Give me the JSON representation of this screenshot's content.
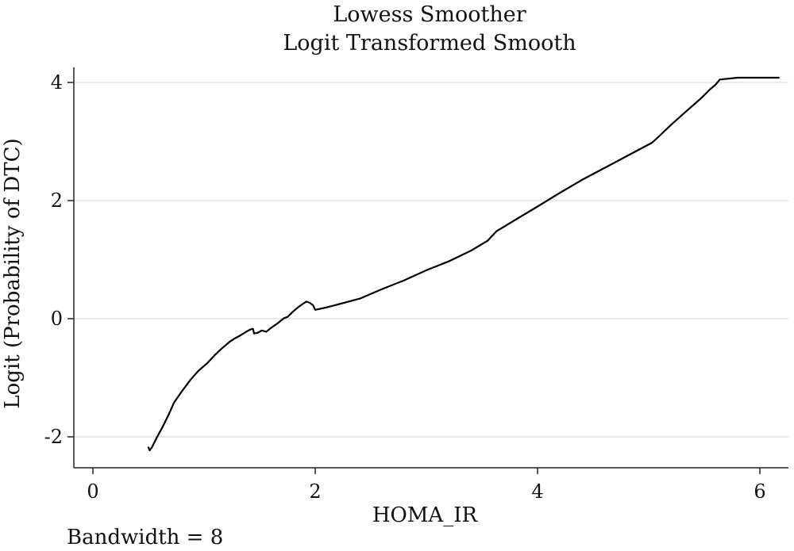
{
  "chart_data": {
    "type": "line",
    "title": "Lowess Smoother",
    "subtitle": "Logit Transformed Smooth",
    "xlabel": "HOMA_IR",
    "ylabel": "Logit (Probability of DTC)",
    "xlim": [
      -0.1,
      6.25
    ],
    "ylim": [
      -2.5,
      4.1
    ],
    "xticks": [
      0,
      2,
      4,
      6
    ],
    "yticks": [
      -2,
      0,
      2,
      4
    ],
    "xtick_labels": [
      "0",
      "2",
      "4",
      "6"
    ],
    "ytick_labels": [
      "-2",
      "0",
      "2",
      "4"
    ],
    "grid": "horizontal",
    "note": "Bandwidth = 8",
    "series": [
      {
        "color": "#000000",
        "x": [
          0.5,
          0.51,
          0.53,
          0.57,
          0.63,
          0.68,
          0.73,
          0.8,
          0.88,
          0.95,
          1.03,
          1.1,
          1.15,
          1.2,
          1.23,
          1.28,
          1.32,
          1.38,
          1.42,
          1.44,
          1.45,
          1.48,
          1.52,
          1.56,
          1.6,
          1.63,
          1.66,
          1.7,
          1.72,
          1.75,
          1.8,
          1.85,
          1.88,
          1.92,
          1.95,
          1.98,
          2.0,
          2.1,
          2.22,
          2.4,
          2.6,
          2.8,
          3.0,
          3.2,
          3.4,
          3.55,
          3.63,
          3.7,
          3.85,
          4.0,
          4.2,
          4.4,
          4.6,
          4.8,
          5.03,
          5.1,
          5.2,
          5.33,
          5.47,
          5.55,
          5.6,
          5.64,
          5.8,
          6.0,
          6.17
        ],
        "y": [
          -2.18,
          -2.23,
          -2.18,
          -2.03,
          -1.82,
          -1.63,
          -1.42,
          -1.23,
          -1.03,
          -0.88,
          -0.75,
          -0.61,
          -0.52,
          -0.44,
          -0.39,
          -0.33,
          -0.29,
          -0.22,
          -0.18,
          -0.17,
          -0.25,
          -0.24,
          -0.2,
          -0.22,
          -0.16,
          -0.12,
          -0.08,
          -0.02,
          0.01,
          0.03,
          0.12,
          0.2,
          0.24,
          0.29,
          0.27,
          0.23,
          0.15,
          0.19,
          0.25,
          0.34,
          0.5,
          0.65,
          0.82,
          0.97,
          1.15,
          1.32,
          1.48,
          1.56,
          1.73,
          1.9,
          2.13,
          2.35,
          2.55,
          2.75,
          2.98,
          3.1,
          3.28,
          3.5,
          3.73,
          3.88,
          3.96,
          4.05,
          4.08,
          4.08,
          4.08
        ]
      }
    ]
  }
}
